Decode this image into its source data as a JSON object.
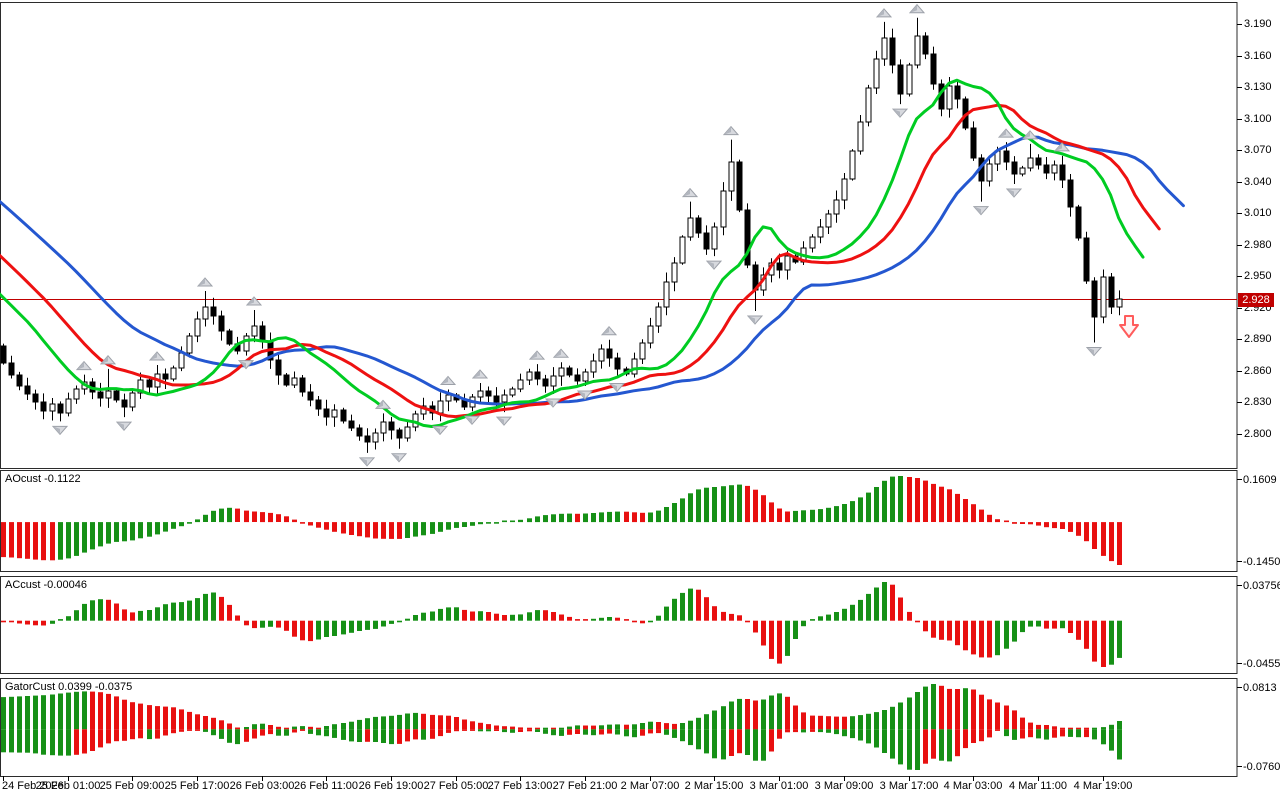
{
  "window": {
    "background": "#FFFFFF",
    "text_color": "#000000"
  },
  "chart_data": {
    "type": "candlestick",
    "timeframe_note": "H1 forex-style chart with Alligator, Fractals, AO, AC and Gator indicators",
    "main": {
      "price_ticks": [
        "3.190",
        "3.160",
        "3.130",
        "3.100",
        "3.070",
        "3.040",
        "3.010",
        "2.980",
        "2.950",
        "2.920",
        "2.890",
        "2.860",
        "2.830",
        "2.800"
      ],
      "hline": {
        "value": 2.928,
        "label": "2.928",
        "color": "#C00000"
      },
      "signal": {
        "shape": "down-arrow",
        "x_index": 139.3,
        "price": 2.912,
        "stroke": "#FF5C5C",
        "fill": "#FFF4F4"
      },
      "up_color": "#FFFFFF",
      "down_color": "#000000",
      "outline": "#000000",
      "candles": {
        "closes": [
          2.868,
          2.856,
          2.846,
          2.838,
          2.83,
          2.822,
          2.829,
          2.82,
          2.833,
          2.843,
          2.849,
          2.84,
          2.834,
          2.841,
          2.832,
          2.826,
          2.839,
          2.851,
          2.845,
          2.857,
          2.852,
          2.863,
          2.877,
          2.893,
          2.909,
          2.921,
          2.912,
          2.898,
          2.886,
          2.879,
          2.893,
          2.903,
          2.888,
          2.87,
          2.856,
          2.847,
          2.853,
          2.84,
          2.832,
          2.824,
          2.816,
          2.823,
          2.812,
          2.806,
          2.798,
          2.792,
          2.801,
          2.811,
          2.804,
          2.796,
          2.807,
          2.819,
          2.827,
          2.82,
          2.831,
          2.837,
          2.832,
          2.826,
          2.835,
          2.841,
          2.836,
          2.83,
          2.837,
          2.843,
          2.851,
          2.859,
          2.852,
          2.846,
          2.855,
          2.863,
          2.856,
          2.85,
          2.859,
          2.869,
          2.881,
          2.872,
          2.862,
          2.857,
          2.871,
          2.887,
          2.903,
          2.921,
          2.945,
          2.963,
          2.987,
          3.005,
          2.991,
          2.976,
          2.997,
          3.031,
          3.059,
          3.013,
          2.961,
          2.937,
          2.951,
          2.963,
          2.956,
          2.969,
          2.964,
          2.977,
          2.987,
          2.997,
          3.009,
          3.023,
          3.043,
          3.069,
          3.097,
          3.129,
          3.157,
          3.177,
          3.151,
          3.123,
          3.151,
          3.179,
          3.161,
          3.133,
          3.109,
          3.131,
          3.119,
          3.091,
          3.063,
          3.041,
          3.057,
          3.069,
          3.059,
          3.047,
          3.053,
          3.063,
          3.056,
          3.048,
          3.056,
          3.042,
          3.016,
          2.986,
          2.946,
          2.911,
          2.949,
          2.921,
          2.928
        ],
        "warmup": [
          3.178,
          3.17,
          3.162,
          3.155,
          3.148,
          3.14,
          3.132,
          3.125,
          3.118,
          3.11,
          3.102,
          3.095,
          3.088,
          3.08,
          3.072,
          3.065,
          3.058,
          3.05,
          3.042,
          3.035,
          3.028,
          3.02,
          3.012,
          3.005,
          2.998,
          2.99,
          2.982,
          2.975,
          2.968,
          2.96,
          2.952,
          2.945,
          2.938,
          2.93,
          2.922,
          2.915,
          2.908,
          2.9,
          2.892,
          2.884
        ],
        "extra_highs": {
          "13": 2.862,
          "25": 2.936,
          "31": 2.918,
          "85": 3.021,
          "90": 3.08,
          "109": 3.192,
          "113": 3.196,
          "127": 3.076
        },
        "extra_lows": {
          "7": 2.812,
          "15": 2.816,
          "45": 2.782,
          "49": 2.786,
          "93": 2.917,
          "121": 3.021,
          "135": 2.887
        }
      }
    },
    "alligator": {
      "jaw": {
        "period": 13,
        "shift": 8,
        "color": "#2457D0"
      },
      "teeth": {
        "period": 8,
        "shift": 5,
        "color": "#EE1111"
      },
      "lips": {
        "period": 5,
        "shift": 3,
        "color": "#00CC22"
      }
    },
    "fractals": {
      "fill": "#D7D9DE",
      "shade": "#B2B6BE",
      "stroke": "#9CA0A8"
    },
    "x_labels": [
      "24 Feb 2026",
      "25 Feb 01:00",
      "25 Feb 09:00",
      "25 Feb 17:00",
      "26 Feb 03:00",
      "26 Feb 11:00",
      "26 Feb 19:00",
      "27 Feb 05:00",
      "27 Feb 13:00",
      "27 Feb 21:00",
      "2 Mar 07:00",
      "2 Mar 15:00",
      "3 Mar 01:00",
      "3 Mar 09:00",
      "3 Mar 17:00",
      "4 Mar 03:00",
      "4 Mar 11:00",
      "4 Mar 19:00"
    ],
    "candles_per_label": 8,
    "indicators": [
      {
        "id": "ao",
        "label": "AOcust -0.1122",
        "scale_top": "0.1609",
        "scale_bottom": "-0.1450",
        "up_color": "#169016",
        "down_color": "#E81010"
      },
      {
        "id": "ac",
        "label": "ACcust -0.00046",
        "scale_top": "0.03756",
        "scale_bottom": "-0.04559",
        "up_color": "#169016",
        "down_color": "#E81010"
      },
      {
        "id": "gator",
        "label": "GatorCust 0.0399 -0.0375",
        "scale_top": "0.0813",
        "scale_bottom": "-0.0760",
        "up_color": "#169016",
        "down_color": "#E81010"
      }
    ]
  }
}
